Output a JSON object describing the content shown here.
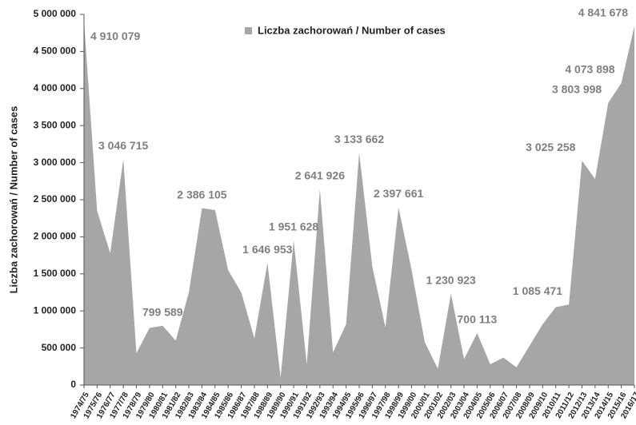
{
  "chart_data": {
    "type": "area",
    "y_label": "Liczba zachorowań  /  Number of cases",
    "categories": [
      "1974/75",
      "1975/76",
      "1976/77",
      "1977/78",
      "1978/79",
      "1979/80",
      "1980/81",
      "1981/82",
      "1982/83",
      "1983/84",
      "1984/85",
      "1985/86",
      "1986/87",
      "1987/88",
      "1988/89",
      "1989/90",
      "1990/91",
      "1991/92",
      "1992/93",
      "1993/94",
      "1994/95",
      "1995/96",
      "1996/97",
      "1997/98",
      "1998/99",
      "1999/00",
      "2000/01",
      "2001/02",
      "2002/03",
      "2003/04",
      "2004/05",
      "2005/06",
      "2006/07",
      "2007/08",
      "2008/09",
      "2009/10",
      "2010/11",
      "2011/12",
      "2012/13",
      "2013/14",
      "2014/15",
      "2015/16",
      "2016/17"
    ],
    "series": [
      {
        "name": "Liczba zachorowań / Number of cases",
        "color": "#a6a6a6",
        "values": [
          4910079,
          2350000,
          1780000,
          3046715,
          430000,
          770000,
          799589,
          600000,
          1250000,
          2386105,
          2360000,
          1550000,
          1250000,
          630000,
          1646953,
          100000,
          1951628,
          280000,
          2641926,
          440000,
          820000,
          3133662,
          1600000,
          780000,
          2397661,
          1550000,
          580000,
          220000,
          1230923,
          350000,
          700113,
          280000,
          370000,
          240000,
          530000,
          820000,
          1050000,
          1085471,
          3025258,
          2780000,
          3803998,
          4073898,
          4841678
        ],
        "value_labels": [
          "4 910 079",
          null,
          null,
          "3 046 715",
          null,
          null,
          "799 589",
          null,
          null,
          "2 386 105",
          null,
          null,
          null,
          null,
          "1 646 953",
          null,
          "1 951 628",
          null,
          "2 641 926",
          null,
          null,
          "3 133 662",
          null,
          null,
          "2 397 661",
          null,
          null,
          null,
          "1 230 923",
          null,
          "700 113",
          null,
          null,
          null,
          null,
          null,
          null,
          "1 085 471",
          "3 025 258",
          null,
          "3 803 998",
          "4 073 898",
          "4 841 678"
        ]
      }
    ],
    "ylim": [
      0,
      5000000
    ],
    "yticks": [
      0,
      {
        "value": 500000,
        "label": "500 000"
      },
      {
        "value": 1000000,
        "label": "1 000 000"
      },
      {
        "value": 1500000,
        "label": "1 500 000"
      },
      {
        "value": 2000000,
        "label": "2 000 000"
      },
      {
        "value": 2500000,
        "label": "2 500 000"
      },
      {
        "value": 3000000,
        "label": "3 000 000"
      },
      {
        "value": 3500000,
        "label": "3 500 000"
      },
      {
        "value": 4000000,
        "label": "4 000 000"
      },
      {
        "value": 4500000,
        "label": "4 500 000"
      },
      {
        "value": 5000000,
        "label": "5 000 000"
      }
    ],
    "legend": "top"
  }
}
